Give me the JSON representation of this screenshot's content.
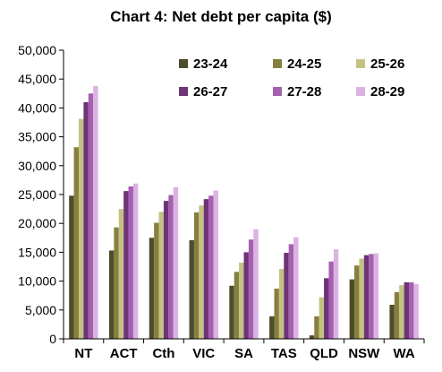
{
  "chart_data": {
    "type": "bar",
    "title": "Chart 4: Net debt per capita ($)",
    "xlabel": "",
    "ylabel": "",
    "ylim": [
      0,
      50000
    ],
    "yticks": [
      "0",
      "5,000",
      "10,000",
      "15,000",
      "20,000",
      "25,000",
      "30,000",
      "35,000",
      "40,000",
      "45,000",
      "50,000"
    ],
    "grid": false,
    "legend_position": "top-right",
    "categories": [
      "NT",
      "ACT",
      "Cth",
      "VIC",
      "SA",
      "TAS",
      "QLD",
      "NSW",
      "WA"
    ],
    "series": [
      {
        "name": "23-24",
        "color": "#4d4d2b",
        "values": [
          24800,
          15300,
          17500,
          17100,
          9200,
          3900,
          600,
          10300,
          5900
        ]
      },
      {
        "name": "24-25",
        "color": "#86803e",
        "values": [
          33200,
          19300,
          20100,
          21900,
          11600,
          8700,
          3900,
          12700,
          8100
        ]
      },
      {
        "name": "25-26",
        "color": "#c3c283",
        "values": [
          38100,
          22500,
          22000,
          23100,
          13200,
          12100,
          7200,
          13900,
          9300
        ]
      },
      {
        "name": "26-27",
        "color": "#6f3377",
        "values": [
          41000,
          25600,
          23900,
          24200,
          15000,
          14900,
          10500,
          14500,
          9800
        ]
      },
      {
        "name": "27-28",
        "color": "#a560b0",
        "values": [
          42500,
          26400,
          24900,
          24800,
          17200,
          16400,
          13400,
          14700,
          9800
        ]
      },
      {
        "name": "28-29",
        "color": "#dcb2e2",
        "values": [
          43800,
          26900,
          26300,
          25700,
          19000,
          17600,
          15500,
          14800,
          9500
        ]
      }
    ]
  }
}
